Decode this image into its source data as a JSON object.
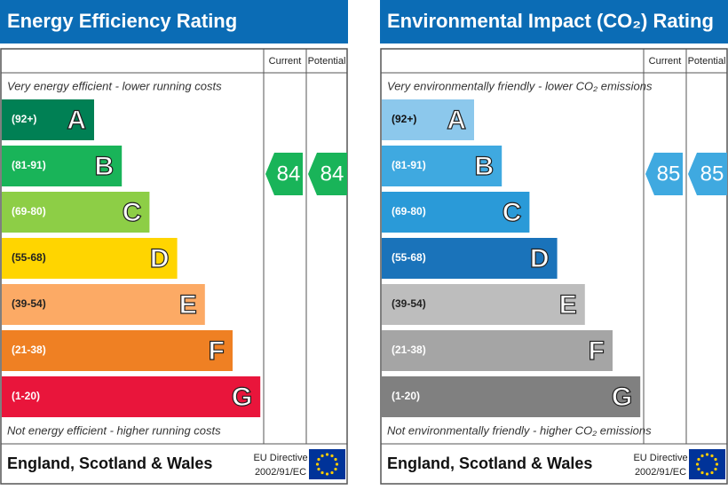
{
  "panels": [
    {
      "title": "Energy Efficiency Rating",
      "columns": [
        "Current",
        "Potential"
      ],
      "top_note": "Very energy efficient - lower running costs",
      "bottom_note": "Not energy efficient - higher running costs",
      "bands": [
        {
          "range": "(92+)",
          "letter": "A"
        },
        {
          "range": "(81-91)",
          "letter": "B"
        },
        {
          "range": "(69-80)",
          "letter": "C"
        },
        {
          "range": "(55-68)",
          "letter": "D"
        },
        {
          "range": "(39-54)",
          "letter": "E"
        },
        {
          "range": "(21-38)",
          "letter": "F"
        },
        {
          "range": "(1-20)",
          "letter": "G"
        }
      ],
      "current": 84,
      "potential": 84,
      "footer": "England, Scotland & Wales",
      "directive": [
        "EU Directive",
        "2002/91/EC"
      ]
    },
    {
      "title": "Environmental Impact (CO₂) Rating",
      "columns": [
        "Current",
        "Potential"
      ],
      "top_note": "Very environmentally friendly - lower CO₂ emissions",
      "bottom_note": "Not environmentally friendly - higher CO₂ emissions",
      "bands": [
        {
          "range": "(92+)",
          "letter": "A"
        },
        {
          "range": "(81-91)",
          "letter": "B"
        },
        {
          "range": "(69-80)",
          "letter": "C"
        },
        {
          "range": "(55-68)",
          "letter": "D"
        },
        {
          "range": "(39-54)",
          "letter": "E"
        },
        {
          "range": "(21-38)",
          "letter": "F"
        },
        {
          "range": "(1-20)",
          "letter": "G"
        }
      ],
      "current": 85,
      "potential": 85,
      "footer": "England, Scotland & Wales",
      "directive": [
        "EU Directive",
        "2002/91/EC"
      ]
    }
  ]
}
